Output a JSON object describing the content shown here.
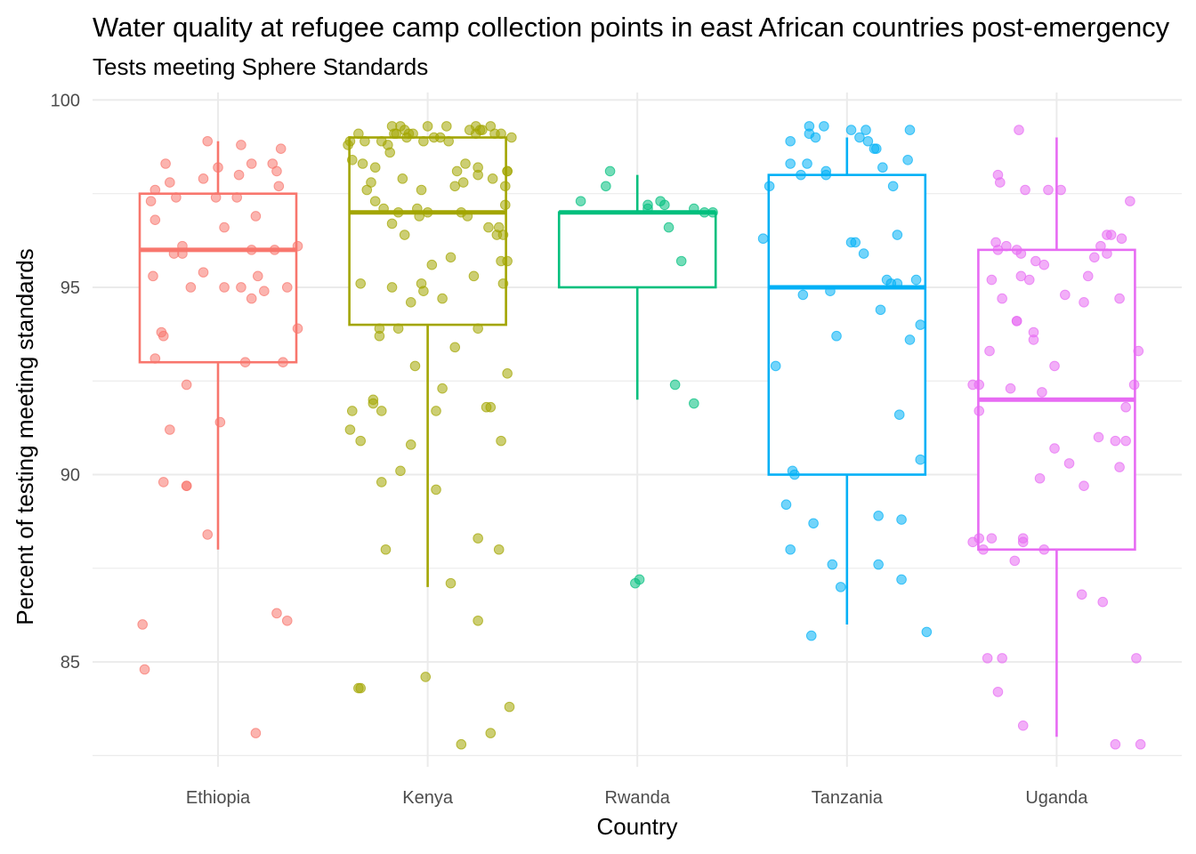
{
  "chart_data": {
    "type": "boxplot",
    "title": "Water quality at refugee camp collection points in east African countries post-emergency",
    "subtitle": "Tests meeting Sphere Standards",
    "xlabel": "Country",
    "ylabel": "Percent of testing meeting standards",
    "ylim": [
      82.2,
      100.2
    ],
    "yticks": [
      85,
      90,
      95,
      100
    ],
    "grid": true,
    "legend": "none",
    "categories": [
      "Ethiopia",
      "Kenya",
      "Rwanda",
      "Tanzania",
      "Uganda"
    ],
    "series": [
      {
        "category": "Ethiopia",
        "color": "#F8766D",
        "box": {
          "min": 88,
          "q1": 93,
          "median": 96,
          "q3": 97.5,
          "max": 98.9
        },
        "points": [
          [
            -0.36,
            86.0
          ],
          [
            -0.35,
            84.8
          ],
          [
            -0.32,
            97.3
          ],
          [
            -0.3,
            96.8
          ],
          [
            -0.31,
            95.3
          ],
          [
            -0.3,
            97.6
          ],
          [
            -0.3,
            93.1
          ],
          [
            -0.27,
            93.8
          ],
          [
            -0.26,
            93.7
          ],
          [
            -0.26,
            89.8
          ],
          [
            -0.25,
            98.3
          ],
          [
            -0.23,
            97.8
          ],
          [
            -0.23,
            91.2
          ],
          [
            -0.21,
            95.9
          ],
          [
            -0.2,
            97.4
          ],
          [
            -0.17,
            96.1
          ],
          [
            -0.17,
            95.9
          ],
          [
            -0.15,
            92.4
          ],
          [
            -0.15,
            89.7
          ],
          [
            -0.15,
            89.7
          ],
          [
            -0.13,
            95.0
          ],
          [
            -0.07,
            97.9
          ],
          [
            -0.07,
            95.4
          ],
          [
            -0.05,
            88.4
          ],
          [
            -0.05,
            98.9
          ],
          [
            -0.01,
            97.4
          ],
          [
            0.0,
            98.2
          ],
          [
            0.01,
            91.4
          ],
          [
            0.03,
            96.6
          ],
          [
            0.03,
            95.0
          ],
          [
            0.09,
            97.4
          ],
          [
            0.1,
            98.0
          ],
          [
            0.11,
            98.8
          ],
          [
            0.11,
            95.0
          ],
          [
            0.13,
            93.0
          ],
          [
            0.16,
            94.7
          ],
          [
            0.16,
            98.3
          ],
          [
            0.16,
            96.0
          ],
          [
            0.18,
            83.1
          ],
          [
            0.18,
            96.9
          ],
          [
            0.19,
            95.3
          ],
          [
            0.22,
            94.9
          ],
          [
            0.26,
            98.3
          ],
          [
            0.27,
            96.0
          ],
          [
            0.28,
            98.1
          ],
          [
            0.28,
            86.3
          ],
          [
            0.29,
            97.7
          ],
          [
            0.3,
            98.7
          ],
          [
            0.31,
            93.0
          ],
          [
            0.33,
            95.0
          ],
          [
            0.33,
            86.1
          ],
          [
            0.38,
            96.1
          ],
          [
            0.38,
            93.9
          ]
        ]
      },
      {
        "category": "Kenya",
        "color": "#A3A500",
        "box": {
          "min": 87,
          "q1": 94,
          "median": 97,
          "q3": 99,
          "max": 99
        },
        "points": [
          [
            -0.38,
            98.8
          ],
          [
            -0.37,
            98.9
          ],
          [
            -0.37,
            91.2
          ],
          [
            -0.36,
            91.7
          ],
          [
            -0.36,
            98.4
          ],
          [
            -0.33,
            84.3
          ],
          [
            -0.33,
            99.1
          ],
          [
            -0.32,
            84.3
          ],
          [
            -0.32,
            95.1
          ],
          [
            -0.32,
            90.9
          ],
          [
            -0.31,
            98.3
          ],
          [
            -0.3,
            98.9
          ],
          [
            -0.29,
            97.6
          ],
          [
            -0.27,
            97.8
          ],
          [
            -0.26,
            92.0
          ],
          [
            -0.26,
            91.9
          ],
          [
            -0.25,
            98.2
          ],
          [
            -0.25,
            97.3
          ],
          [
            -0.23,
            93.7
          ],
          [
            -0.23,
            93.9
          ],
          [
            -0.22,
            91.7
          ],
          [
            -0.22,
            89.8
          ],
          [
            -0.22,
            98.9
          ],
          [
            -0.21,
            97.1
          ],
          [
            -0.2,
            88.0
          ],
          [
            -0.19,
            98.8
          ],
          [
            -0.18,
            98.6
          ],
          [
            -0.17,
            99.3
          ],
          [
            -0.17,
            95.0
          ],
          [
            -0.17,
            96.7
          ],
          [
            -0.16,
            99.1
          ],
          [
            -0.15,
            99.1
          ],
          [
            -0.14,
            97.0
          ],
          [
            -0.14,
            93.9
          ],
          [
            -0.13,
            99.3
          ],
          [
            -0.12,
            97.9
          ],
          [
            -0.13,
            90.1
          ],
          [
            -0.11,
            99.2
          ],
          [
            -0.11,
            96.4
          ],
          [
            -0.1,
            99.0
          ],
          [
            -0.09,
            99.1
          ],
          [
            -0.08,
            94.6
          ],
          [
            -0.08,
            90.8
          ],
          [
            -0.07,
            99.1
          ],
          [
            -0.06,
            92.9
          ],
          [
            -0.05,
            97.1
          ],
          [
            -0.04,
            96.9
          ],
          [
            -0.03,
            95.1
          ],
          [
            -0.03,
            97.6
          ],
          [
            -0.02,
            98.9
          ],
          [
            -0.02,
            94.9
          ],
          [
            -0.01,
            84.6
          ],
          [
            0.0,
            99.3
          ],
          [
            0.0,
            97.0
          ],
          [
            0.02,
            95.6
          ],
          [
            0.03,
            99.0
          ],
          [
            0.04,
            91.7
          ],
          [
            0.04,
            89.6
          ],
          [
            0.06,
            99.0
          ],
          [
            0.07,
            92.3
          ],
          [
            0.07,
            94.7
          ],
          [
            0.09,
            99.3
          ],
          [
            0.1,
            98.9
          ],
          [
            0.11,
            87.1
          ],
          [
            0.11,
            95.8
          ],
          [
            0.13,
            97.7
          ],
          [
            0.13,
            93.4
          ],
          [
            0.14,
            98.1
          ],
          [
            0.16,
            82.8
          ],
          [
            0.16,
            97.0
          ],
          [
            0.17,
            97.8
          ],
          [
            0.18,
            98.3
          ],
          [
            0.19,
            96.9
          ],
          [
            0.2,
            99.2
          ],
          [
            0.22,
            95.3
          ],
          [
            0.23,
            99.3
          ],
          [
            0.23,
            99.1
          ],
          [
            0.24,
            98.2
          ],
          [
            0.24,
            98.0
          ],
          [
            0.24,
            93.9
          ],
          [
            0.24,
            86.1
          ],
          [
            0.24,
            88.3
          ],
          [
            0.25,
            99.2
          ],
          [
            0.26,
            99.2
          ],
          [
            0.28,
            91.8
          ],
          [
            0.29,
            96.6
          ],
          [
            0.3,
            91.8
          ],
          [
            0.3,
            99.3
          ],
          [
            0.3,
            83.1
          ],
          [
            0.31,
            97.9
          ],
          [
            0.32,
            99.1
          ],
          [
            0.33,
            96.4
          ],
          [
            0.34,
            88.0
          ],
          [
            0.34,
            96.6
          ],
          [
            0.35,
            99.1
          ],
          [
            0.35,
            90.9
          ],
          [
            0.35,
            95.7
          ],
          [
            0.36,
            96.4
          ],
          [
            0.36,
            95.1
          ],
          [
            0.37,
            97.2
          ],
          [
            0.37,
            97.7
          ],
          [
            0.38,
            98.1
          ],
          [
            0.38,
            95.7
          ],
          [
            0.38,
            98.1
          ],
          [
            0.38,
            92.7
          ],
          [
            0.39,
            83.8
          ],
          [
            0.4,
            99.0
          ]
        ]
      },
      {
        "category": "Rwanda",
        "color": "#00BF7D",
        "box": {
          "min": 92,
          "q1": 95,
          "median": 97,
          "q3": 97,
          "max": 98
        },
        "points": [
          [
            -0.27,
            97.3
          ],
          [
            -0.15,
            97.7
          ],
          [
            -0.13,
            98.1
          ],
          [
            -0.01,
            87.1
          ],
          [
            0.01,
            87.2
          ],
          [
            0.05,
            97.1
          ],
          [
            0.05,
            97.2
          ],
          [
            0.11,
            97.3
          ],
          [
            0.13,
            97.2
          ],
          [
            0.15,
            96.6
          ],
          [
            0.18,
            92.4
          ],
          [
            0.21,
            95.7
          ],
          [
            0.27,
            91.9
          ],
          [
            0.27,
            97.1
          ],
          [
            0.32,
            97.0
          ],
          [
            0.36,
            97.0
          ]
        ]
      },
      {
        "category": "Tanzania",
        "color": "#00B0F6",
        "box": {
          "min": 86,
          "q1": 90,
          "median": 95,
          "q3": 98,
          "max": 99
        },
        "points": [
          [
            -0.4,
            96.3
          ],
          [
            -0.37,
            97.7
          ],
          [
            -0.34,
            92.9
          ],
          [
            -0.29,
            89.2
          ],
          [
            -0.27,
            98.9
          ],
          [
            -0.27,
            98.3
          ],
          [
            -0.27,
            88.0
          ],
          [
            -0.26,
            90.1
          ],
          [
            -0.25,
            90.0
          ],
          [
            -0.22,
            98.0
          ],
          [
            -0.21,
            94.8
          ],
          [
            -0.19,
            98.3
          ],
          [
            -0.18,
            99.3
          ],
          [
            -0.18,
            99.1
          ],
          [
            -0.17,
            85.7
          ],
          [
            -0.16,
            88.7
          ],
          [
            -0.15,
            99.0
          ],
          [
            -0.11,
            99.3
          ],
          [
            -0.1,
            98.1
          ],
          [
            -0.1,
            98.0
          ],
          [
            -0.08,
            94.9
          ],
          [
            -0.07,
            87.6
          ],
          [
            -0.05,
            93.7
          ],
          [
            -0.03,
            87.0
          ],
          [
            0.02,
            99.2
          ],
          [
            0.02,
            96.2
          ],
          [
            0.04,
            96.2
          ],
          [
            0.06,
            99.0
          ],
          [
            0.08,
            95.9
          ],
          [
            0.09,
            99.2
          ],
          [
            0.1,
            98.9
          ],
          [
            0.13,
            98.7
          ],
          [
            0.14,
            98.7
          ],
          [
            0.15,
            88.9
          ],
          [
            0.16,
            94.4
          ],
          [
            0.15,
            87.6
          ],
          [
            0.17,
            98.2
          ],
          [
            0.19,
            95.2
          ],
          [
            0.21,
            95.1
          ],
          [
            0.22,
            97.7
          ],
          [
            0.24,
            95.1
          ],
          [
            0.24,
            96.4
          ],
          [
            0.25,
            91.6
          ],
          [
            0.26,
            87.2
          ],
          [
            0.26,
            88.8
          ],
          [
            0.29,
            98.4
          ],
          [
            0.3,
            93.6
          ],
          [
            0.3,
            99.2
          ],
          [
            0.33,
            95.2
          ],
          [
            0.35,
            94.0
          ],
          [
            0.35,
            90.4
          ],
          [
            0.38,
            85.8
          ]
        ]
      },
      {
        "category": "Uganda",
        "color": "#E76BF3",
        "box": {
          "min": 83,
          "q1": 88,
          "median": 92,
          "q3": 96,
          "max": 99
        },
        "points": [
          [
            -0.4,
            92.4
          ],
          [
            -0.4,
            88.2
          ],
          [
            -0.37,
            92.4
          ],
          [
            -0.37,
            88.3
          ],
          [
            -0.37,
            91.7
          ],
          [
            -0.35,
            88.0
          ],
          [
            -0.33,
            85.1
          ],
          [
            -0.32,
            93.3
          ],
          [
            -0.31,
            95.2
          ],
          [
            -0.31,
            88.3
          ],
          [
            -0.29,
            96.2
          ],
          [
            -0.28,
            96.0
          ],
          [
            -0.28,
            84.2
          ],
          [
            -0.28,
            98.0
          ],
          [
            -0.27,
            97.8
          ],
          [
            -0.26,
            94.7
          ],
          [
            -0.26,
            85.1
          ],
          [
            -0.24,
            96.1
          ],
          [
            -0.22,
            92.3
          ],
          [
            -0.2,
            87.7
          ],
          [
            -0.19,
            96.0
          ],
          [
            -0.19,
            94.1
          ],
          [
            -0.19,
            94.1
          ],
          [
            -0.18,
            99.2
          ],
          [
            -0.17,
            95.9
          ],
          [
            -0.17,
            95.3
          ],
          [
            -0.16,
            88.3
          ],
          [
            -0.16,
            88.2
          ],
          [
            -0.16,
            83.3
          ],
          [
            -0.15,
            97.6
          ],
          [
            -0.13,
            95.2
          ],
          [
            -0.11,
            93.6
          ],
          [
            -0.11,
            93.8
          ],
          [
            -0.1,
            95.7
          ],
          [
            -0.08,
            89.9
          ],
          [
            -0.07,
            92.2
          ],
          [
            -0.06,
            95.6
          ],
          [
            -0.06,
            88.0
          ],
          [
            -0.04,
            97.6
          ],
          [
            -0.01,
            92.9
          ],
          [
            -0.01,
            90.7
          ],
          [
            0.02,
            97.6
          ],
          [
            0.04,
            94.8
          ],
          [
            0.06,
            90.3
          ],
          [
            0.12,
            86.8
          ],
          [
            0.13,
            89.7
          ],
          [
            0.13,
            94.6
          ],
          [
            0.15,
            95.3
          ],
          [
            0.18,
            95.8
          ],
          [
            0.2,
            91.0
          ],
          [
            0.21,
            96.1
          ],
          [
            0.22,
            86.6
          ],
          [
            0.24,
            95.9
          ],
          [
            0.24,
            96.4
          ],
          [
            0.26,
            96.4
          ],
          [
            0.28,
            82.8
          ],
          [
            0.28,
            90.9
          ],
          [
            0.3,
            90.2
          ],
          [
            0.3,
            94.7
          ],
          [
            0.31,
            96.3
          ],
          [
            0.33,
            90.9
          ],
          [
            0.33,
            91.8
          ],
          [
            0.35,
            97.3
          ],
          [
            0.37,
            92.4
          ],
          [
            0.38,
            85.1
          ],
          [
            0.39,
            93.3
          ],
          [
            0.4,
            82.8
          ]
        ]
      }
    ]
  }
}
